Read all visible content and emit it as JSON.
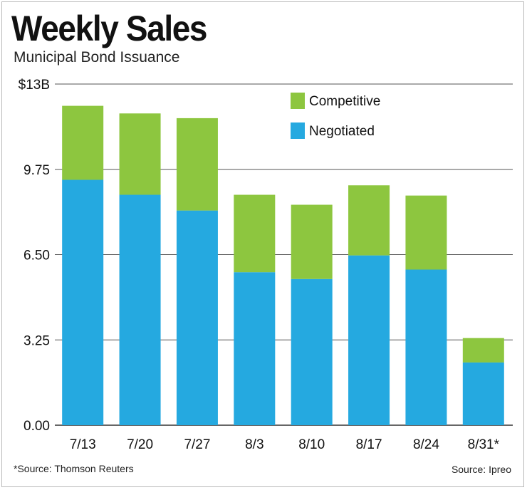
{
  "header": {
    "title": "Weekly Sales",
    "subtitle": "Municipal Bond Issuance"
  },
  "footer": {
    "source_left": "*Source: Thomson Reuters",
    "source_right": "Source: Ipreo"
  },
  "colors": {
    "competitive": "#8dc63f",
    "negotiated": "#25a9e0",
    "grid": "#555555",
    "text": "#111111"
  },
  "chart_data": {
    "type": "bar",
    "stacked": true,
    "title": "Weekly Sales",
    "subtitle": "Municipal Bond Issuance",
    "categories": [
      "7/13",
      "7/20",
      "7/27",
      "8/3",
      "8/10",
      "8/17",
      "8/24",
      "8/31*"
    ],
    "series": [
      {
        "name": "Negotiated",
        "color": "#25a9e0",
        "values": [
          9.35,
          8.78,
          8.18,
          5.83,
          5.57,
          6.47,
          5.93,
          2.39
        ]
      },
      {
        "name": "Competitive",
        "color": "#8dc63f",
        "values": [
          2.82,
          3.1,
          3.52,
          2.95,
          2.83,
          2.67,
          2.82,
          0.93
        ]
      }
    ],
    "totals": [
      12.17,
      11.88,
      11.7,
      8.78,
      8.4,
      9.14,
      8.75,
      3.32
    ],
    "yticks": [
      "0.00",
      "3.25",
      "6.50",
      "9.75",
      "$13B"
    ],
    "ylim": [
      0,
      13
    ],
    "xlabel": "",
    "ylabel": "",
    "grid": true,
    "legend_position": "top-right",
    "legend": [
      "Competitive",
      "Negotiated"
    ]
  }
}
